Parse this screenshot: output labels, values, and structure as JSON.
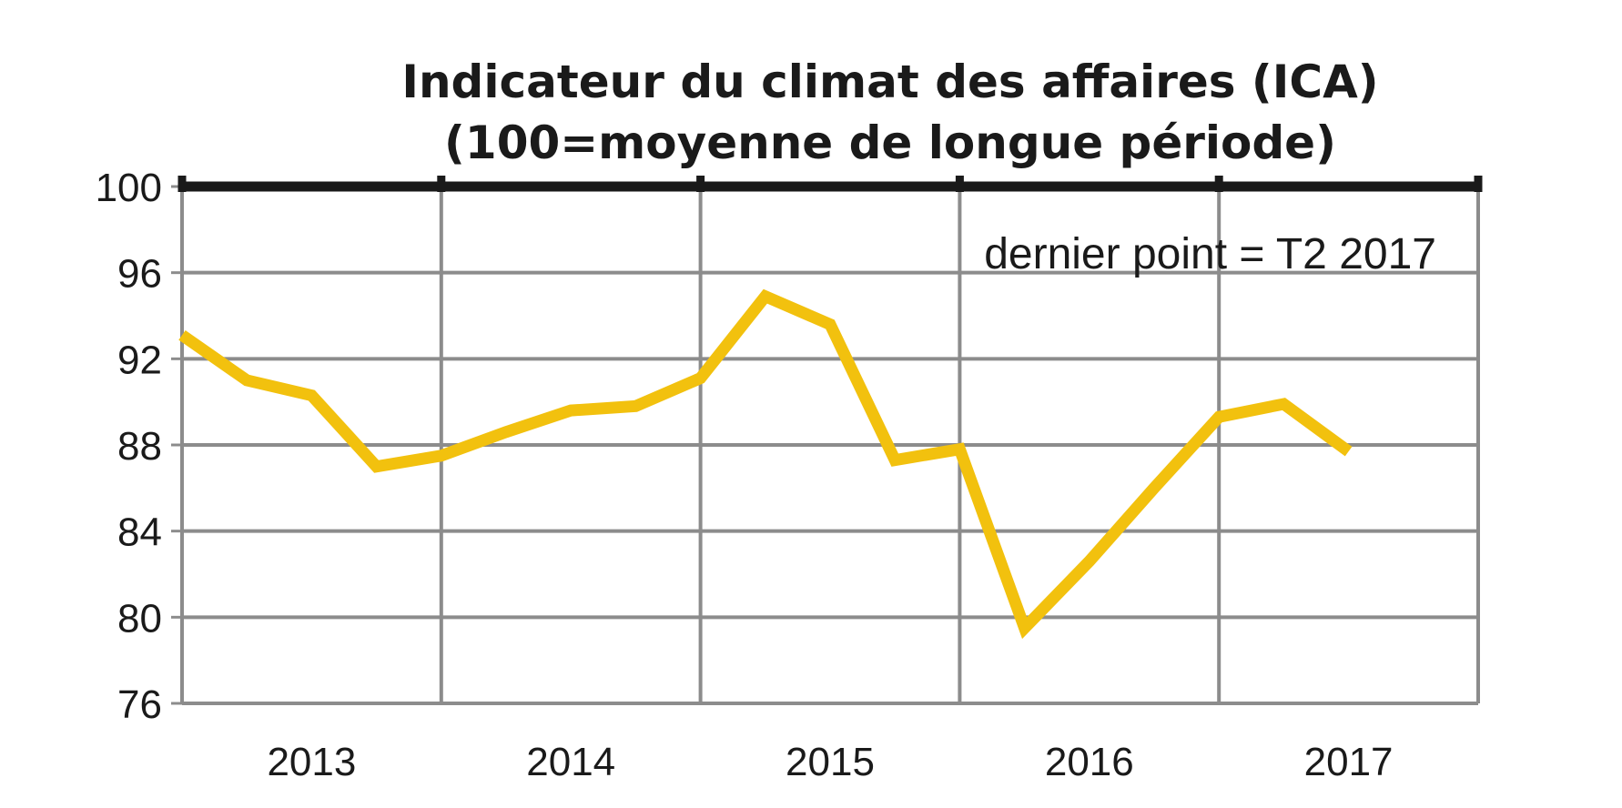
{
  "chart_data": {
    "type": "line",
    "title": "Indicateur du climat des affaires (ICA)",
    "subtitle": "(100=moyenne de longue période)",
    "annotation": "dernier point = T2 2017",
    "xlabel": "",
    "ylabel": "",
    "ylim": [
      76,
      100
    ],
    "yticks": [
      "100",
      "96",
      "92",
      "88",
      "84",
      "80",
      "76"
    ],
    "categories": [
      "2013",
      "2014",
      "2015",
      "2016",
      "2017"
    ],
    "grid": true,
    "colors": {
      "line": "#f2c10e",
      "grid": "#8c8c8c",
      "axis": "#1a1a1a"
    },
    "series": [
      {
        "name": "ICA",
        "x": [
          2013.0,
          2013.25,
          2013.5,
          2013.75,
          2014.0,
          2014.25,
          2014.5,
          2014.75,
          2015.0,
          2015.25,
          2015.5,
          2015.75,
          2016.0,
          2016.25,
          2016.5,
          2016.75,
          2017.0,
          2017.25,
          2017.5
        ],
        "values": [
          93.1,
          91.0,
          90.3,
          87.0,
          87.5,
          88.6,
          89.6,
          89.8,
          91.1,
          94.9,
          93.6,
          87.3,
          87.8,
          79.5,
          82.6,
          86.0,
          89.3,
          89.9,
          87.7
        ]
      }
    ]
  }
}
